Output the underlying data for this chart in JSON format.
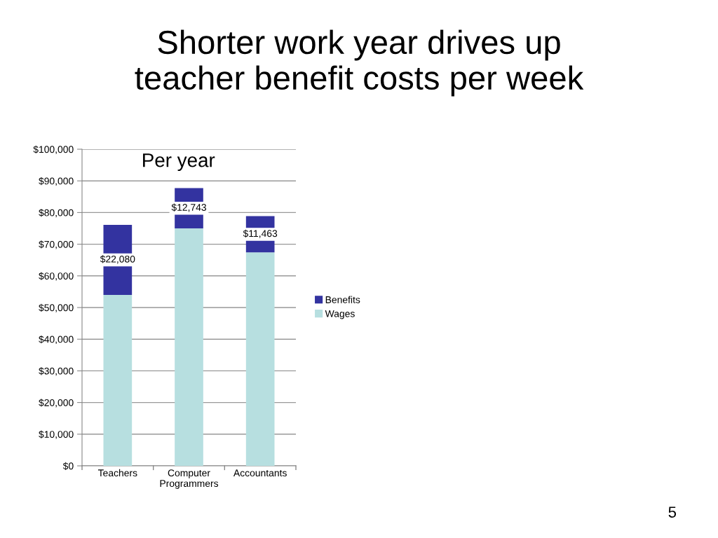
{
  "chart_data": {
    "type": "bar",
    "title": "Shorter work year drives up\nteacher benefit costs per week",
    "subtitle": "Per year",
    "categories": [
      "Teachers",
      "Computer\nProgrammers",
      "Accountants"
    ],
    "stacked": true,
    "series": [
      {
        "name": "Wages",
        "color": "#b7dfe0",
        "values": [
          54000,
          75000,
          67400
        ]
      },
      {
        "name": "Benefits",
        "color": "#3333a0",
        "values": [
          22080,
          12743,
          11463
        ],
        "value_labels": [
          "$22,080",
          "$12,743",
          "$11,463"
        ]
      }
    ],
    "ylim": [
      0,
      100000
    ],
    "yticks": [
      {
        "value": 0,
        "label": "$0"
      },
      {
        "value": 10000,
        "label": "$10,000"
      },
      {
        "value": 20000,
        "label": "$20,000"
      },
      {
        "value": 30000,
        "label": "$30,000"
      },
      {
        "value": 40000,
        "label": "$40,000"
      },
      {
        "value": 50000,
        "label": "$50,000"
      },
      {
        "value": 60000,
        "label": "$60,000"
      },
      {
        "value": 70000,
        "label": "$70,000"
      },
      {
        "value": 80000,
        "label": "$80,000"
      },
      {
        "value": 90000,
        "label": "$90,000"
      },
      {
        "value": 100000,
        "label": "$100,000"
      }
    ],
    "grid": "y",
    "legend": "right",
    "annotations": [
      "5"
    ]
  }
}
